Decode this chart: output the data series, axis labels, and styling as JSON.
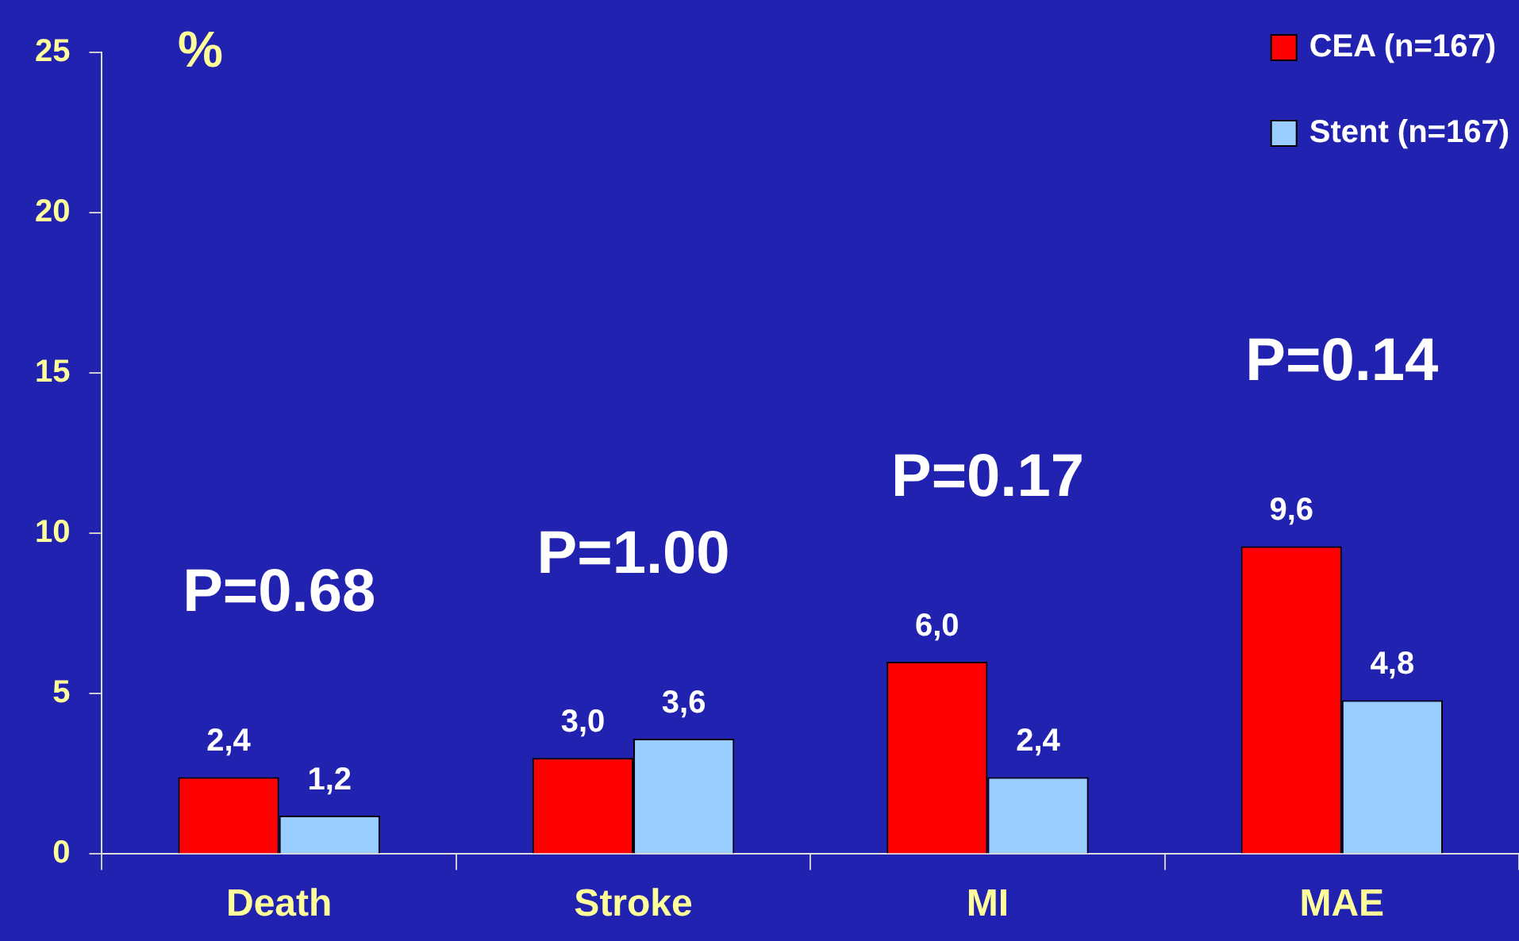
{
  "chart_data": {
    "type": "bar",
    "ylabel": "%",
    "categories": [
      "Death",
      "Stroke",
      "MI",
      "MAE"
    ],
    "series": [
      {
        "name": "CEA (n=167)",
        "color": "#ff0000",
        "values": [
          2.4,
          3.0,
          6.0,
          9.6
        ],
        "value_labels": [
          "2,4",
          "3,0",
          "6,0",
          "9,6"
        ]
      },
      {
        "name": "Stent (n=167)",
        "color": "#99ccff",
        "values": [
          1.2,
          3.6,
          2.4,
          4.8
        ],
        "value_labels": [
          "1,2",
          "3,6",
          "2,4",
          "4,8"
        ]
      }
    ],
    "ylim": [
      0,
      25
    ],
    "yticks": [
      0,
      5,
      10,
      15,
      20,
      25
    ],
    "grid": false,
    "legend": "top right",
    "annotations": [
      "P=0.68",
      "P=1.00",
      "P=0.17",
      "P=0.14"
    ]
  }
}
